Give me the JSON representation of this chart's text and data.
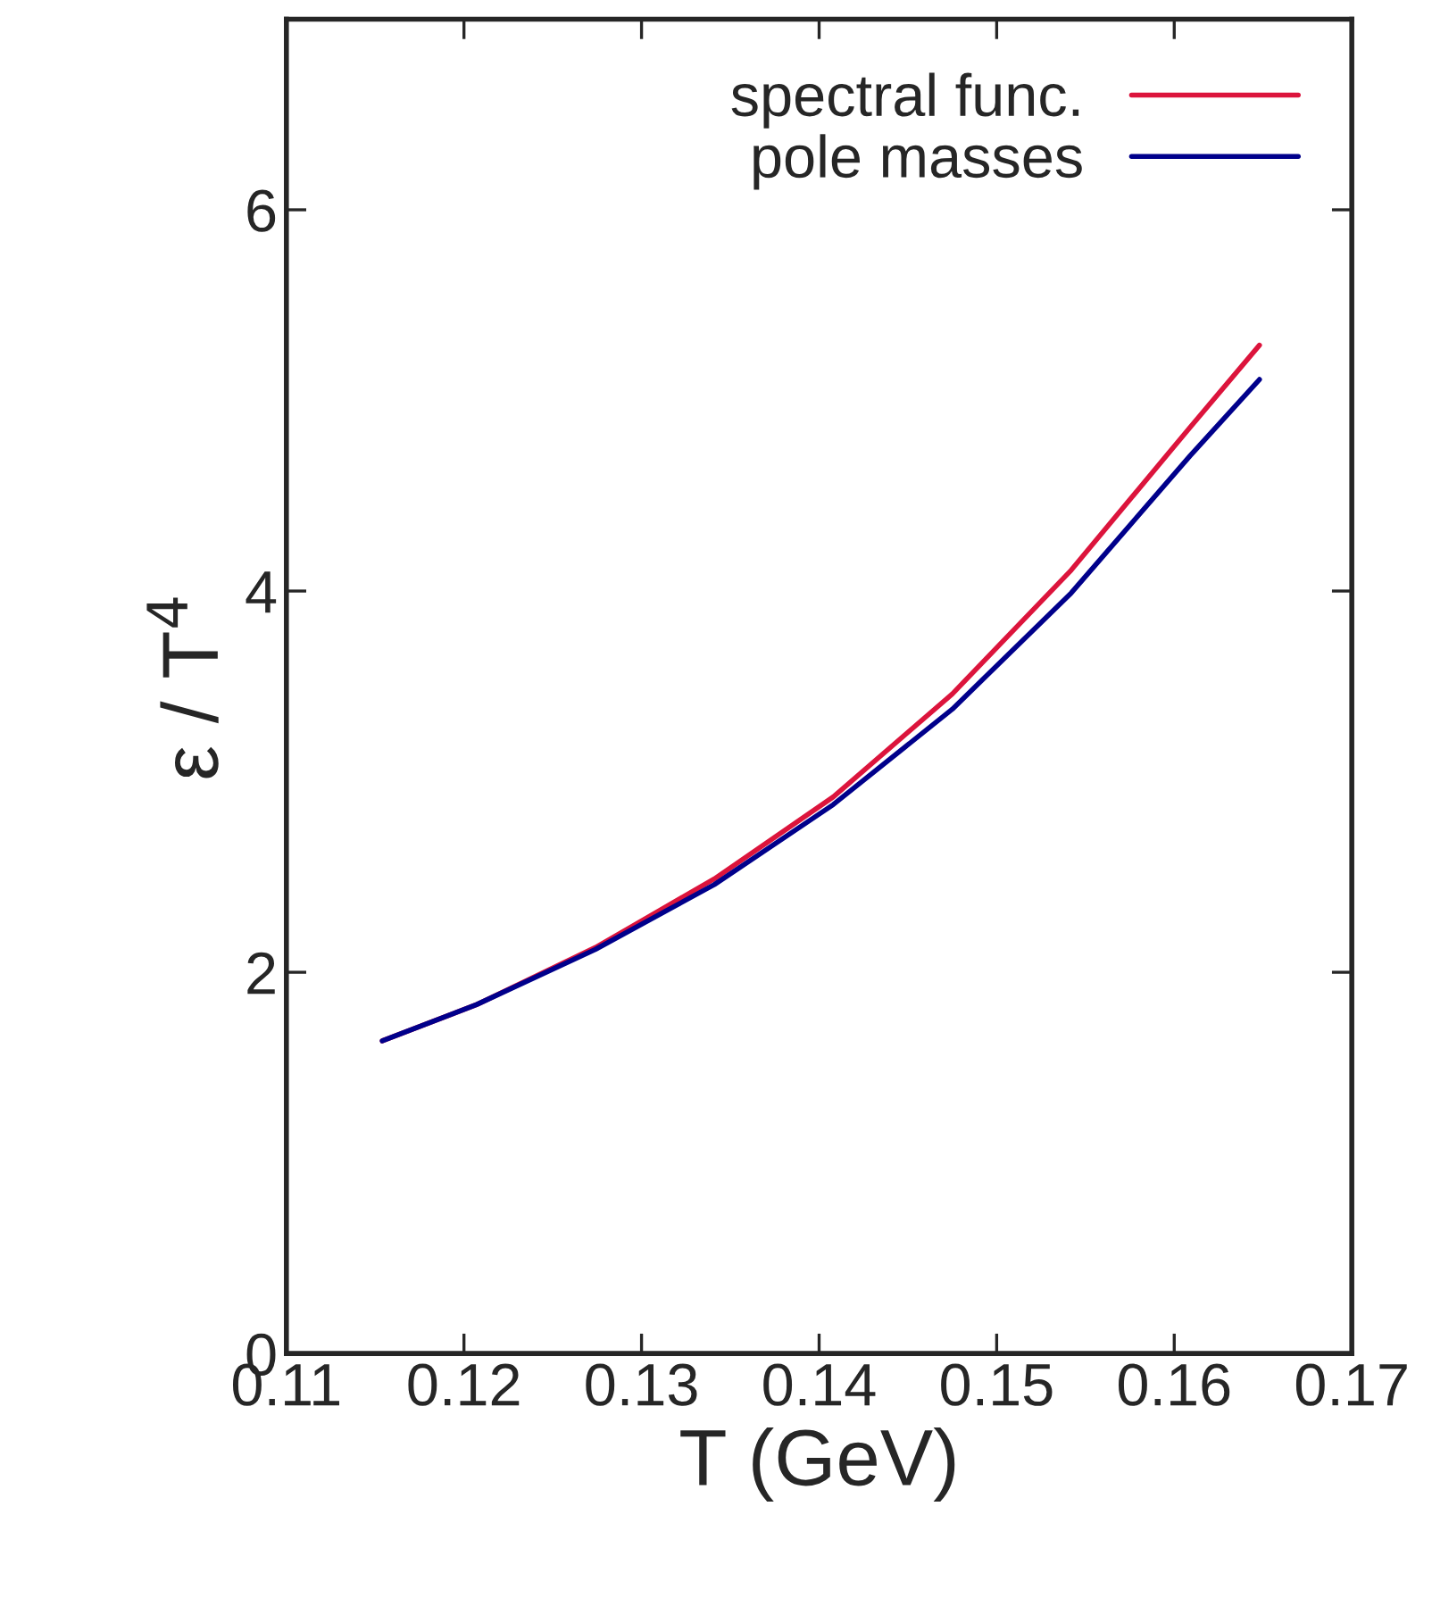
{
  "chart_data": {
    "type": "line",
    "xlabel": "T (GeV)",
    "ylabel": "ε / T$^{4}$",
    "x": [
      0.1154,
      0.1207,
      0.1274,
      0.1341,
      0.1408,
      0.1475,
      0.1542,
      0.1609,
      0.1648
    ],
    "series": [
      {
        "name": "spectral func.",
        "color": "#dc143c",
        "values": [
          1.64,
          1.83,
          2.13,
          2.49,
          2.92,
          3.46,
          4.11,
          4.86,
          5.29
        ]
      },
      {
        "name": "pole masses",
        "color": "#00008b",
        "values": [
          1.64,
          1.83,
          2.12,
          2.46,
          2.88,
          3.38,
          3.99,
          4.71,
          5.11
        ]
      }
    ],
    "xlim": [
      0.11,
      0.17
    ],
    "xticks": [
      0.11,
      0.12,
      0.13,
      0.14,
      0.15,
      0.16,
      0.17
    ],
    "ylim": [
      0,
      7
    ],
    "yticks": [
      0,
      2,
      4,
      6
    ],
    "legend": "top right",
    "grid": false,
    "line_style": "solid"
  }
}
